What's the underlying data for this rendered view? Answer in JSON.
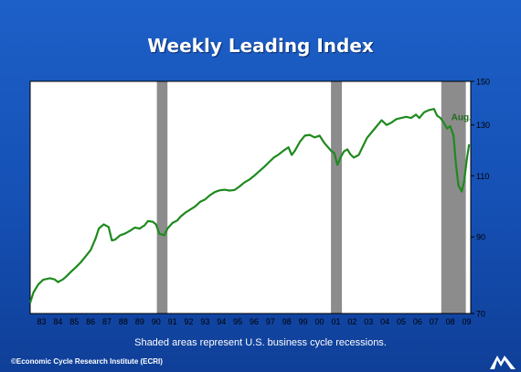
{
  "header": {
    "title": "Weekly Leading Index"
  },
  "footer": {
    "note": "Shaded areas represent U.S. business cycle recessions.",
    "copyright": "©Economic Cycle Research Institute (ECRI)"
  },
  "logo": {
    "icon": "ecri-logo-icon"
  },
  "colors": {
    "background": "#1550b4",
    "line": "#1f8a1f",
    "recession": "#8c8c8c",
    "plot_area": "#ffffff"
  },
  "chart_data": {
    "type": "line",
    "title": "Weekly Leading Index",
    "y_scale": "log",
    "ylim": [
      70,
      150
    ],
    "yticks": [
      70,
      90,
      110,
      130,
      150
    ],
    "x_range": [
      1982.8,
      2009.75
    ],
    "xtick_labels": [
      "83",
      "84",
      "85",
      "86",
      "87",
      "88",
      "89",
      "90",
      "91",
      "92",
      "93",
      "94",
      "95",
      "96",
      "97",
      "98",
      "99",
      "00",
      "01",
      "02",
      "03",
      "04",
      "05",
      "06",
      "07",
      "08",
      "09"
    ],
    "xtick_years": [
      1983,
      1984,
      1985,
      1986,
      1987,
      1988,
      1989,
      1990,
      1991,
      1992,
      1993,
      1994,
      1995,
      1996,
      1997,
      1998,
      1999,
      2000,
      2001,
      2002,
      2003,
      2004,
      2005,
      2006,
      2007,
      2008,
      2009
    ],
    "grid": false,
    "recessions": [
      {
        "start": 1990.55,
        "end": 1991.2
      },
      {
        "start": 2001.2,
        "end": 2001.87
      },
      {
        "start": 2007.95,
        "end": 2009.45
      }
    ],
    "annotation": {
      "text": "Aug.",
      "x": 2009.45,
      "y": 132
    },
    "series": [
      {
        "values": [
          [
            1982.8,
            72.5
          ],
          [
            1983.0,
            75.0
          ],
          [
            1983.3,
            77.0
          ],
          [
            1983.6,
            78.2
          ],
          [
            1984.0,
            78.6
          ],
          [
            1984.3,
            78.3
          ],
          [
            1984.5,
            77.6
          ],
          [
            1984.8,
            78.3
          ],
          [
            1985.0,
            79.0
          ],
          [
            1985.3,
            80.3
          ],
          [
            1985.6,
            81.5
          ],
          [
            1985.9,
            82.8
          ],
          [
            1986.2,
            84.5
          ],
          [
            1986.5,
            86.2
          ],
          [
            1986.8,
            89.5
          ],
          [
            1987.0,
            92.5
          ],
          [
            1987.3,
            93.8
          ],
          [
            1987.6,
            93.0
          ],
          [
            1987.8,
            89.0
          ],
          [
            1988.0,
            89.2
          ],
          [
            1988.3,
            90.5
          ],
          [
            1988.6,
            91.0
          ],
          [
            1988.9,
            91.8
          ],
          [
            1989.2,
            92.8
          ],
          [
            1989.5,
            92.5
          ],
          [
            1989.8,
            93.5
          ],
          [
            1990.0,
            94.8
          ],
          [
            1990.3,
            94.6
          ],
          [
            1990.5,
            93.8
          ],
          [
            1990.7,
            91.0
          ],
          [
            1991.0,
            90.5
          ],
          [
            1991.2,
            92.5
          ],
          [
            1991.5,
            94.2
          ],
          [
            1991.8,
            95.0
          ],
          [
            1992.0,
            96.2
          ],
          [
            1992.3,
            97.5
          ],
          [
            1992.6,
            98.5
          ],
          [
            1992.9,
            99.5
          ],
          [
            1993.2,
            101.0
          ],
          [
            1993.5,
            101.8
          ],
          [
            1993.8,
            103.2
          ],
          [
            1994.1,
            104.3
          ],
          [
            1994.4,
            104.9
          ],
          [
            1994.7,
            105.1
          ],
          [
            1995.0,
            104.8
          ],
          [
            1995.3,
            105.0
          ],
          [
            1995.6,
            106.2
          ],
          [
            1995.9,
            107.6
          ],
          [
            1996.2,
            108.6
          ],
          [
            1996.5,
            110.0
          ],
          [
            1996.8,
            111.6
          ],
          [
            1997.1,
            113.2
          ],
          [
            1997.4,
            115.0
          ],
          [
            1997.7,
            116.8
          ],
          [
            1998.0,
            118.0
          ],
          [
            1998.3,
            119.5
          ],
          [
            1998.6,
            120.8
          ],
          [
            1998.8,
            117.8
          ],
          [
            1999.0,
            119.5
          ],
          [
            1999.3,
            123.0
          ],
          [
            1999.6,
            125.5
          ],
          [
            1999.9,
            125.8
          ],
          [
            2000.2,
            124.8
          ],
          [
            2000.5,
            125.5
          ],
          [
            2000.8,
            122.5
          ],
          [
            2001.0,
            121.0
          ],
          [
            2001.2,
            119.5
          ],
          [
            2001.4,
            118.5
          ],
          [
            2001.6,
            114.0
          ],
          [
            2001.8,
            117.0
          ],
          [
            2002.0,
            119.2
          ],
          [
            2002.2,
            120.0
          ],
          [
            2002.4,
            118.0
          ],
          [
            2002.6,
            116.8
          ],
          [
            2002.9,
            117.8
          ],
          [
            2003.1,
            120.5
          ],
          [
            2003.4,
            124.5
          ],
          [
            2003.7,
            127.0
          ],
          [
            2004.0,
            129.5
          ],
          [
            2004.3,
            132.0
          ],
          [
            2004.6,
            130.0
          ],
          [
            2004.9,
            131.0
          ],
          [
            2005.2,
            132.5
          ],
          [
            2005.5,
            133.0
          ],
          [
            2005.8,
            133.5
          ],
          [
            2006.1,
            133.0
          ],
          [
            2006.4,
            134.5
          ],
          [
            2006.6,
            133.0
          ],
          [
            2006.9,
            135.5
          ],
          [
            2007.2,
            136.5
          ],
          [
            2007.5,
            137.0
          ],
          [
            2007.7,
            134.0
          ],
          [
            2007.9,
            133.0
          ],
          [
            2008.1,
            131.0
          ],
          [
            2008.3,
            128.5
          ],
          [
            2008.5,
            129.5
          ],
          [
            2008.7,
            125.5
          ],
          [
            2008.85,
            114.0
          ],
          [
            2009.0,
            106.5
          ],
          [
            2009.2,
            104.5
          ],
          [
            2009.35,
            108.0
          ],
          [
            2009.5,
            115.5
          ],
          [
            2009.65,
            122.0
          ]
        ]
      }
    ]
  }
}
